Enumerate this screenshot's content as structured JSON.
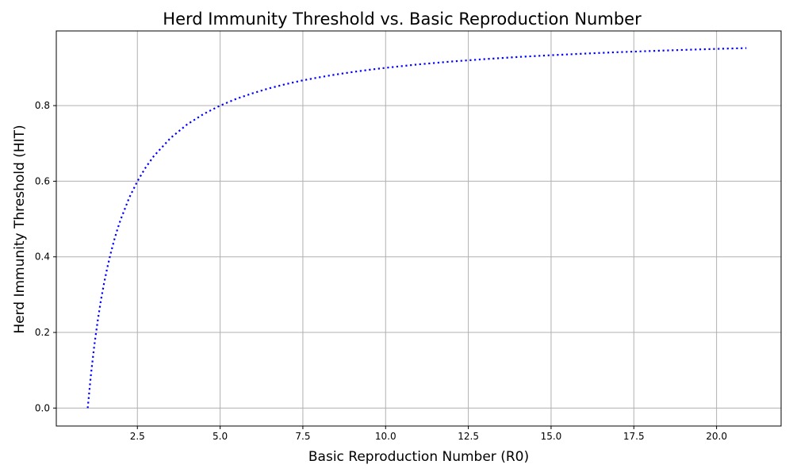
{
  "chart_data": {
    "type": "line",
    "title": "Herd Immunity Threshold vs. Basic Reproduction Number",
    "xlabel": "Basic Reproduction Number (R0)",
    "ylabel": "Herd Immunity Threshold (HIT)",
    "xlim": [
      0.05,
      21.95
    ],
    "ylim": [
      -0.0475,
      0.9975
    ],
    "grid": true,
    "line_style": "dotted",
    "line_color": "#0000ff",
    "grid_color": "#b0b0b0",
    "x_ticks": [
      2.5,
      5.0,
      7.5,
      10.0,
      12.5,
      15.0,
      17.5,
      20.0
    ],
    "x_tick_labels": [
      "2.5",
      "5.0",
      "7.5",
      "10.0",
      "12.5",
      "15.0",
      "17.5",
      "20.0"
    ],
    "y_ticks": [
      0.0,
      0.2,
      0.4,
      0.6,
      0.8
    ],
    "y_tick_labels": [
      "0.0",
      "0.2",
      "0.4",
      "0.6",
      "0.8"
    ],
    "series": [
      {
        "x": [
          1.0,
          1.1,
          1.2,
          1.3,
          1.4,
          1.5,
          1.6,
          1.7,
          1.8,
          1.9,
          2.0,
          2.25,
          2.5,
          2.75,
          3.0,
          3.5,
          4.0,
          4.5,
          5.0,
          5.5,
          6.0,
          6.5,
          7.0,
          7.5,
          8.0,
          8.5,
          9.0,
          9.5,
          10.0,
          11.0,
          12.0,
          13.0,
          14.0,
          15.0,
          16.0,
          17.0,
          18.0,
          19.0,
          20.0,
          20.9
        ],
        "values": [
          0.0,
          0.0909,
          0.1667,
          0.2308,
          0.2857,
          0.3333,
          0.375,
          0.4118,
          0.4444,
          0.4737,
          0.5,
          0.5556,
          0.6,
          0.6364,
          0.6667,
          0.7143,
          0.75,
          0.7778,
          0.8,
          0.8182,
          0.8333,
          0.8462,
          0.8571,
          0.8667,
          0.875,
          0.8824,
          0.8889,
          0.8947,
          0.9,
          0.9091,
          0.9167,
          0.9231,
          0.9286,
          0.9333,
          0.9375,
          0.9412,
          0.9444,
          0.9474,
          0.95,
          0.9522
        ]
      }
    ]
  }
}
